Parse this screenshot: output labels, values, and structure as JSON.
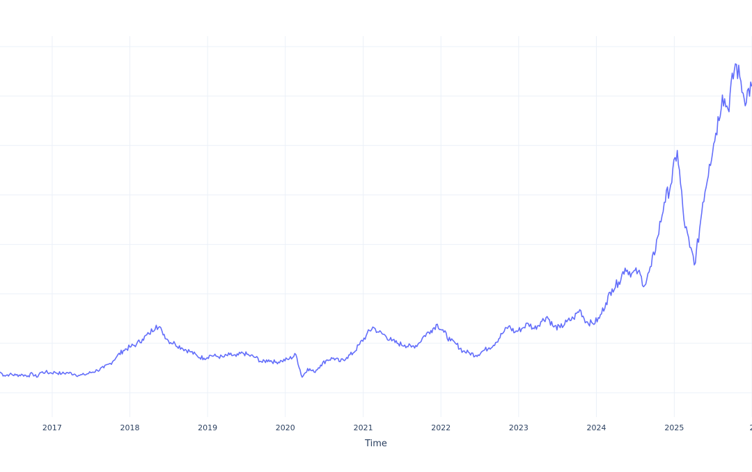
{
  "chart_data": {
    "type": "line",
    "title": "",
    "xlabel": "Time",
    "ylabel": "",
    "x_ticks": [
      "2017",
      "2018",
      "2019",
      "2020",
      "2021",
      "2022",
      "2023",
      "2024",
      "2025",
      "2"
    ],
    "xlim": [
      "2016-05-01",
      "2026-01-01"
    ],
    "ylim": [
      0,
      100
    ],
    "grid": true,
    "legend": "none",
    "colors": {
      "line": "#636efa",
      "grid": "#ebf0f8",
      "axis_text": "#2a3f5f"
    },
    "series": [
      {
        "points": [
          [
            "2016-05-01",
            6.0
          ],
          [
            "2016-05-20",
            5.0
          ],
          [
            "2016-06-15",
            5.3
          ],
          [
            "2016-07-15",
            5.1
          ],
          [
            "2016-08-15",
            5.2
          ],
          [
            "2016-09-10",
            4.9
          ],
          [
            "2016-10-01",
            5.5
          ],
          [
            "2016-10-20",
            4.5
          ],
          [
            "2016-11-05",
            5.8
          ],
          [
            "2016-12-01",
            6.0
          ],
          [
            "2016-12-20",
            5.7
          ],
          [
            "2017-01-15",
            5.9
          ],
          [
            "2017-02-15",
            5.5
          ],
          [
            "2017-03-15",
            5.8
          ],
          [
            "2017-04-15",
            5.4
          ],
          [
            "2017-05-10",
            5.0
          ],
          [
            "2017-06-01",
            5.2
          ],
          [
            "2017-07-01",
            5.8
          ],
          [
            "2017-08-01",
            6.5
          ],
          [
            "2017-09-01",
            7.2
          ],
          [
            "2017-10-01",
            8.5
          ],
          [
            "2017-11-01",
            10.5
          ],
          [
            "2017-12-01",
            12.2
          ],
          [
            "2018-01-01",
            13.2
          ],
          [
            "2018-02-01",
            14.0
          ],
          [
            "2018-03-01",
            15.5
          ],
          [
            "2018-04-01",
            17.0
          ],
          [
            "2018-05-05",
            19.5
          ],
          [
            "2018-06-01",
            17.8
          ],
          [
            "2018-07-01",
            15.0
          ],
          [
            "2018-08-01",
            14.2
          ],
          [
            "2018-09-01",
            13.0
          ],
          [
            "2018-10-15",
            11.8
          ],
          [
            "2018-11-15",
            10.5
          ],
          [
            "2018-12-15",
            10.0
          ],
          [
            "2019-01-15",
            10.8
          ],
          [
            "2019-02-15",
            10.5
          ],
          [
            "2019-03-15",
            10.3
          ],
          [
            "2019-04-15",
            11.0
          ],
          [
            "2019-05-15",
            10.5
          ],
          [
            "2019-06-15",
            11.5
          ],
          [
            "2019-07-15",
            10.8
          ],
          [
            "2019-08-15",
            10.2
          ],
          [
            "2019-09-15",
            8.8
          ],
          [
            "2019-10-15",
            9.5
          ],
          [
            "2019-11-15",
            8.8
          ],
          [
            "2019-12-15",
            9.2
          ],
          [
            "2020-01-20",
            9.8
          ],
          [
            "2020-02-20",
            11.0
          ],
          [
            "2020-03-20",
            4.5
          ],
          [
            "2020-04-15",
            7.0
          ],
          [
            "2020-05-15",
            6.0
          ],
          [
            "2020-06-15",
            8.0
          ],
          [
            "2020-07-15",
            9.5
          ],
          [
            "2020-08-15",
            10.0
          ],
          [
            "2020-09-15",
            9.0
          ],
          [
            "2020-10-15",
            10.2
          ],
          [
            "2020-11-15",
            11.5
          ],
          [
            "2020-12-15",
            14.0
          ],
          [
            "2021-01-15",
            16.5
          ],
          [
            "2021-02-15",
            19.0
          ],
          [
            "2021-03-15",
            17.5
          ],
          [
            "2021-04-15",
            16.5
          ],
          [
            "2021-05-15",
            15.0
          ],
          [
            "2021-06-15",
            14.2
          ],
          [
            "2021-07-15",
            13.8
          ],
          [
            "2021-08-15",
            13.2
          ],
          [
            "2021-09-15",
            14.0
          ],
          [
            "2021-10-15",
            16.5
          ],
          [
            "2021-11-15",
            18.0
          ],
          [
            "2021-12-15",
            19.8
          ],
          [
            "2022-01-15",
            17.5
          ],
          [
            "2022-02-15",
            15.0
          ],
          [
            "2022-03-15",
            14.0
          ],
          [
            "2022-04-15",
            12.0
          ],
          [
            "2022-05-15",
            11.5
          ],
          [
            "2022-06-15",
            10.8
          ],
          [
            "2022-07-15",
            12.0
          ],
          [
            "2022-08-15",
            13.0
          ],
          [
            "2022-09-15",
            14.5
          ],
          [
            "2022-10-15",
            17.0
          ],
          [
            "2022-11-15",
            19.2
          ],
          [
            "2022-12-15",
            17.5
          ],
          [
            "2023-01-15",
            18.5
          ],
          [
            "2023-02-15",
            20.0
          ],
          [
            "2023-03-15",
            18.5
          ],
          [
            "2023-04-15",
            20.5
          ],
          [
            "2023-05-15",
            22.0
          ],
          [
            "2023-06-15",
            19.0
          ],
          [
            "2023-07-15",
            18.8
          ],
          [
            "2023-08-15",
            20.5
          ],
          [
            "2023-09-15",
            21.5
          ],
          [
            "2023-10-15",
            24.0
          ],
          [
            "2023-11-15",
            20.5
          ],
          [
            "2023-12-15",
            20.0
          ],
          [
            "2024-01-15",
            21.5
          ],
          [
            "2024-02-15",
            26.0
          ],
          [
            "2024-03-15",
            30.0
          ],
          [
            "2024-04-15",
            32.0
          ],
          [
            "2024-05-15",
            36.0
          ],
          [
            "2024-06-15",
            34.5
          ],
          [
            "2024-07-15",
            35.0
          ],
          [
            "2024-08-15",
            31.0
          ],
          [
            "2024-09-15",
            36.5
          ],
          [
            "2024-10-15",
            45.0
          ],
          [
            "2024-11-15",
            55.0
          ],
          [
            "2024-12-15",
            60.0
          ],
          [
            "2025-01-15",
            70.0
          ],
          [
            "2025-02-15",
            50.0
          ],
          [
            "2025-03-15",
            42.0
          ],
          [
            "2025-04-10",
            37.5
          ],
          [
            "2025-05-15",
            55.0
          ],
          [
            "2025-06-15",
            66.0
          ],
          [
            "2025-07-15",
            75.0
          ],
          [
            "2025-08-15",
            86.0
          ],
          [
            "2025-09-10",
            82.0
          ],
          [
            "2025-10-15",
            95.0
          ],
          [
            "2025-11-10",
            90.0
          ],
          [
            "2025-11-25",
            85.0
          ],
          [
            "2025-12-31",
            88.5
          ]
        ]
      }
    ]
  }
}
